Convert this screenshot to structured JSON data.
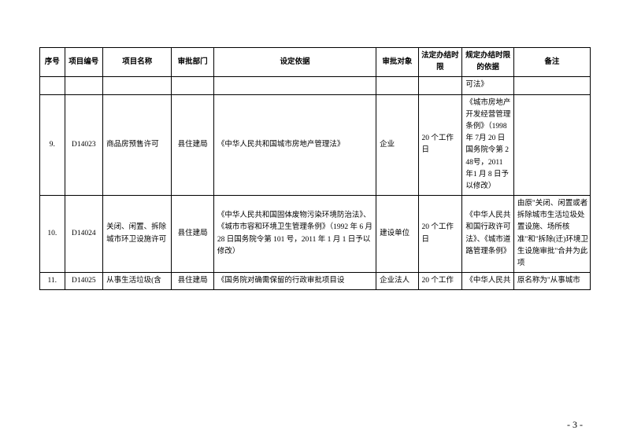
{
  "headers": {
    "seq": "序号",
    "id": "项目编号",
    "name": "项目名称",
    "dept": "审批部门",
    "basis": "设定依据",
    "obj": "审批对象",
    "limit": "法定办结时限",
    "reg": "规定办结时限的依据",
    "remark": "备注"
  },
  "rows": [
    {
      "seq": "",
      "id": "",
      "name": "",
      "dept": "",
      "basis": "",
      "obj": "",
      "limit": "",
      "reg": "可法》",
      "remark": ""
    },
    {
      "seq": "9.",
      "id": "D14023",
      "name": "商品房预售许可",
      "dept": "县住建局",
      "basis": "《中华人民共和国城市房地产管理法》",
      "obj": "企业",
      "limit": "20 个工作日",
      "reg": "《城市房地产开发经营管理条例》（1998 年 7月 20 日国务院令第 248号，2011 年1 月 8 日予以修改）",
      "remark": ""
    },
    {
      "seq": "10.",
      "id": "D14024",
      "name": "关闭、闲置、拆除城市环卫设施许可",
      "dept": "县住建局",
      "basis": "《中华人民共和国固体废物污染环境防治法》、《城市市容和环境卫生管理条例》（1992 年 6 月 28 日国务院令第 101 号，2011 年 1 月 1 日予以修改）",
      "obj": "建设单位",
      "limit": "20 个工作日",
      "reg": "《中华人民共和国行政许可法》、《城市道路管理条例》",
      "remark": "由原\"关闭、闲置或者拆除城市生活垃圾处置设施、场所核准\"和\"拆除(迁)环境卫生设施审批\"合并为此项"
    },
    {
      "seq": "11.",
      "id": "D14025",
      "name": "从事生活垃圾(含",
      "dept": "县住建局",
      "basis": "《国务院对确需保留的行政审批项目设",
      "obj": "企业法人",
      "limit": "20 个工作",
      "reg": "《中华人民共",
      "remark": "原名称为\"从事城市"
    }
  ],
  "pageNumber": "- 3 -"
}
